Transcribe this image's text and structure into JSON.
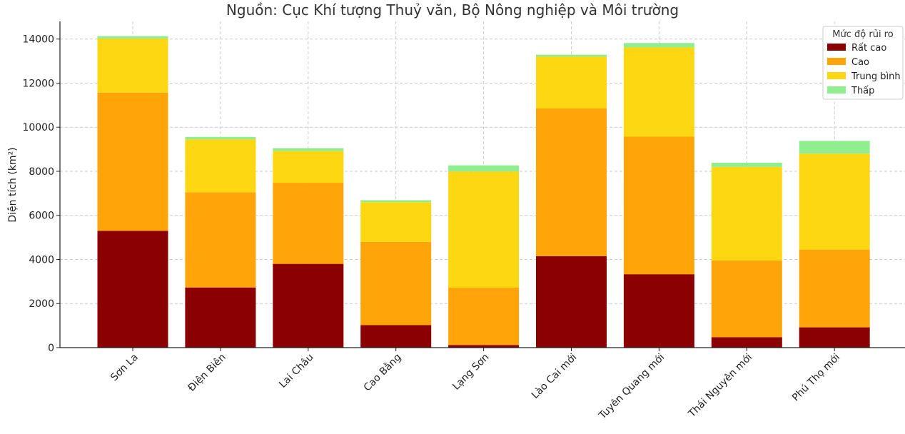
{
  "chart_data": {
    "type": "bar",
    "stacked": true,
    "subtitle": "Nguồn: Cục Khí tượng Thuỷ văn, Bộ Nông nghiệp và Môi trường",
    "xlabel": "",
    "ylabel": "Diện tích (km²)",
    "ylim": [
      0,
      14800
    ],
    "yticks": [
      0,
      2000,
      4000,
      6000,
      8000,
      10000,
      12000,
      14000
    ],
    "grid": true,
    "legend": {
      "title": "Mức độ rủi ro",
      "placement": "top-right"
    },
    "categories": [
      "Sơn La",
      "Điện Biên",
      "Lai Châu",
      "Cao Bằng",
      "Lạng Sơn",
      "Lào Cai mới",
      "Tuyên Quang mới",
      "Thái Nguyên mới",
      "Phú Thọ mới"
    ],
    "series": [
      {
        "name": "Rất cao",
        "color": "#8b0000",
        "values": [
          5300,
          2730,
          3800,
          1020,
          120,
          4150,
          3330,
          470,
          920
        ]
      },
      {
        "name": "Cao",
        "color": "#ffa50a",
        "values": [
          6270,
          4320,
          3680,
          3780,
          2600,
          6700,
          6240,
          3480,
          3530
        ]
      },
      {
        "name": "Trung bình",
        "color": "#fcd712",
        "values": [
          2450,
          2400,
          1440,
          1800,
          5270,
          2350,
          4050,
          4250,
          4350
        ]
      },
      {
        "name": "Thấp",
        "color": "#90ee90",
        "values": [
          110,
          110,
          130,
          90,
          280,
          90,
          200,
          190,
          580
        ]
      }
    ]
  }
}
